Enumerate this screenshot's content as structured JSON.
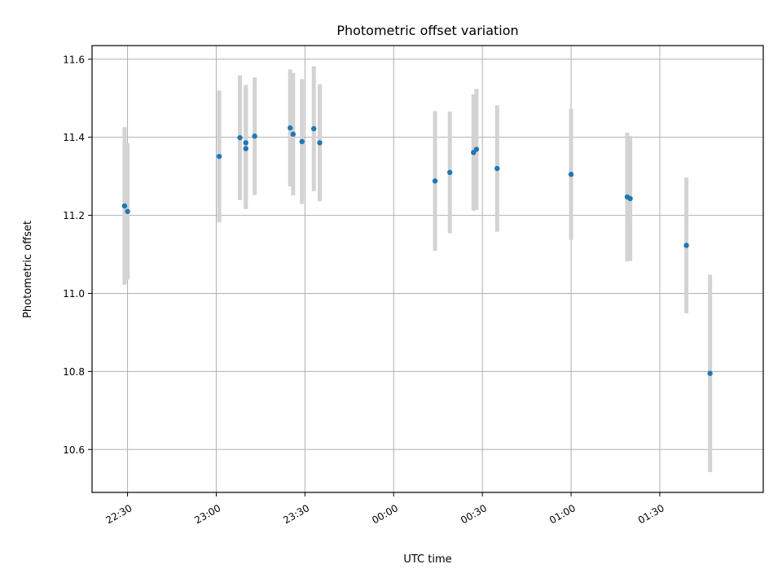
{
  "chart_data": {
    "type": "scatter",
    "title": "Photometric offset variation",
    "xlabel": "UTC time",
    "ylabel": "Photometric offset",
    "x_unit": "time",
    "xlim": [
      "22:18",
      "02:05"
    ],
    "ylim": [
      10.49,
      11.635
    ],
    "grid": true,
    "x_ticks": [
      "22:30",
      "23:00",
      "23:30",
      "00:00",
      "00:30",
      "01:00",
      "01:30"
    ],
    "y_ticks": [
      10.6,
      10.8,
      11.0,
      11.2,
      11.4,
      11.6
    ],
    "colors": {
      "point": "#1f77b4",
      "errorbar": "#d3d3d3",
      "grid": "#b0b0b0"
    },
    "series": [
      {
        "points": [
          {
            "t": "22:29",
            "y": 11.224,
            "err": 0.202
          },
          {
            "t": "22:30",
            "y": 11.21,
            "err": 0.175
          },
          {
            "t": "23:01",
            "y": 11.351,
            "err": 0.169
          },
          {
            "t": "23:08",
            "y": 11.399,
            "err": 0.16
          },
          {
            "t": "23:10",
            "y": 11.371,
            "err": 0.155
          },
          {
            "t": "23:10",
            "y": 11.386,
            "err": 0.148
          },
          {
            "t": "23:13",
            "y": 11.403,
            "err": 0.151
          },
          {
            "t": "23:25",
            "y": 11.424,
            "err": 0.15
          },
          {
            "t": "23:26",
            "y": 11.408,
            "err": 0.157
          },
          {
            "t": "23:29",
            "y": 11.389,
            "err": 0.16
          },
          {
            "t": "23:33",
            "y": 11.422,
            "err": 0.16
          },
          {
            "t": "23:35",
            "y": 11.386,
            "err": 0.15
          },
          {
            "t": "00:14",
            "y": 11.288,
            "err": 0.179
          },
          {
            "t": "00:19",
            "y": 11.31,
            "err": 0.156
          },
          {
            "t": "00:27",
            "y": 11.361,
            "err": 0.149
          },
          {
            "t": "00:28",
            "y": 11.369,
            "err": 0.155
          },
          {
            "t": "00:35",
            "y": 11.32,
            "err": 0.162
          },
          {
            "t": "01:00",
            "y": 11.305,
            "err": 0.168
          },
          {
            "t": "01:19",
            "y": 11.247,
            "err": 0.165
          },
          {
            "t": "01:20",
            "y": 11.243,
            "err": 0.16
          },
          {
            "t": "01:39",
            "y": 11.123,
            "err": 0.174
          },
          {
            "t": "01:47",
            "y": 10.795,
            "err": 0.253
          }
        ]
      }
    ]
  }
}
